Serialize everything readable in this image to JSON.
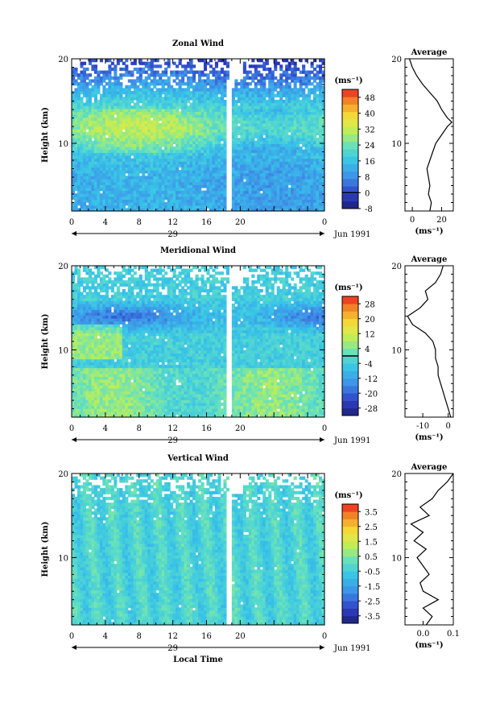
{
  "chart_data": [
    {
      "type": "heatmap",
      "title": "Zonal Wind",
      "ylabel": "Height (km)",
      "ylim": [
        2,
        20
      ],
      "yticks": [
        10,
        20
      ],
      "xlim": [
        0,
        30
      ],
      "xticks": [
        "0",
        "4",
        "8",
        "12",
        "16",
        "20",
        "0"
      ],
      "date_label": "29",
      "date_suffix": "Jun 1991",
      "colorbar": {
        "unit": "(ms⁻¹)",
        "ticks": [
          "48",
          "40",
          "32",
          "24",
          "16",
          "8",
          "0",
          "-8"
        ],
        "range": [
          -8,
          52
        ],
        "zero_line": 0
      },
      "profile": {
        "title": "Average",
        "xlabel": "(ms⁻¹)",
        "xticks": [
          "0",
          "20"
        ],
        "xlim": [
          -5,
          28
        ],
        "heights": [
          2,
          3,
          4,
          5,
          6,
          7,
          8,
          9,
          10,
          11,
          12,
          12.5,
          13,
          14,
          15,
          16,
          17,
          18,
          19,
          20
        ],
        "values": [
          12,
          13,
          11,
          12,
          11,
          10,
          12,
          14,
          16,
          20,
          24,
          27,
          24,
          20,
          17,
          12,
          7,
          3,
          0,
          -2
        ]
      }
    },
    {
      "type": "heatmap",
      "title": "Meridional Wind",
      "ylabel": "Height (km)",
      "ylim": [
        2,
        20
      ],
      "yticks": [
        10,
        20
      ],
      "xlim": [
        0,
        30
      ],
      "xticks": [
        "0",
        "4",
        "8",
        "12",
        "16",
        "20",
        "0"
      ],
      "date_label": "29",
      "date_suffix": "Jun 1991",
      "colorbar": {
        "unit": "(ms⁻¹)",
        "ticks": [
          "28",
          "20",
          "12",
          "4",
          "-4",
          "-12",
          "-20",
          "-28"
        ],
        "range": [
          -32,
          32
        ],
        "zero_line": 0
      },
      "profile": {
        "title": "Average",
        "xlabel": "(ms⁻¹)",
        "xticks": [
          "-10",
          "0"
        ],
        "xlim": [
          -17,
          2
        ],
        "heights": [
          2,
          3,
          4,
          5,
          6,
          7,
          8,
          9,
          10,
          11,
          12,
          13,
          14,
          15,
          16,
          17,
          18,
          19,
          20
        ],
        "values": [
          1,
          0,
          -1,
          -2,
          -3,
          -4,
          -4,
          -5,
          -5,
          -6,
          -9,
          -14,
          -16,
          -11,
          -8,
          -9,
          -5,
          -3,
          -2
        ]
      }
    },
    {
      "type": "heatmap",
      "title": "Vertical Wind",
      "ylabel": "Height (km)",
      "xlabel": "Local Time",
      "ylim": [
        2,
        20
      ],
      "yticks": [
        10,
        20
      ],
      "xlim": [
        0,
        30
      ],
      "xticks": [
        "0",
        "4",
        "8",
        "12",
        "16",
        "20",
        "0"
      ],
      "date_label": "29",
      "date_suffix": "Jun 1991",
      "colorbar": {
        "unit": "(ms⁻¹)",
        "ticks": [
          "3.5",
          "2.5",
          "1.5",
          "0.5",
          "-0.5",
          "-1.5",
          "-2.5",
          "-3.5"
        ],
        "range": [
          -4,
          4
        ]
      },
      "profile": {
        "title": "Average",
        "xlabel": "(ms⁻¹)",
        "xticks": [
          "0.0",
          "0.1"
        ],
        "xlim": [
          -0.06,
          0.1
        ],
        "heights": [
          2,
          3,
          4,
          5,
          6,
          7,
          8,
          9,
          10,
          11,
          12,
          13,
          14,
          15,
          16,
          17,
          18,
          19,
          20
        ],
        "values": [
          0.01,
          0.03,
          0.0,
          0.05,
          0.0,
          -0.01,
          0.02,
          0.0,
          -0.02,
          0.01,
          -0.03,
          0.0,
          -0.04,
          0.02,
          -0.01,
          0.03,
          0.05,
          0.08,
          0.1
        ]
      }
    }
  ]
}
